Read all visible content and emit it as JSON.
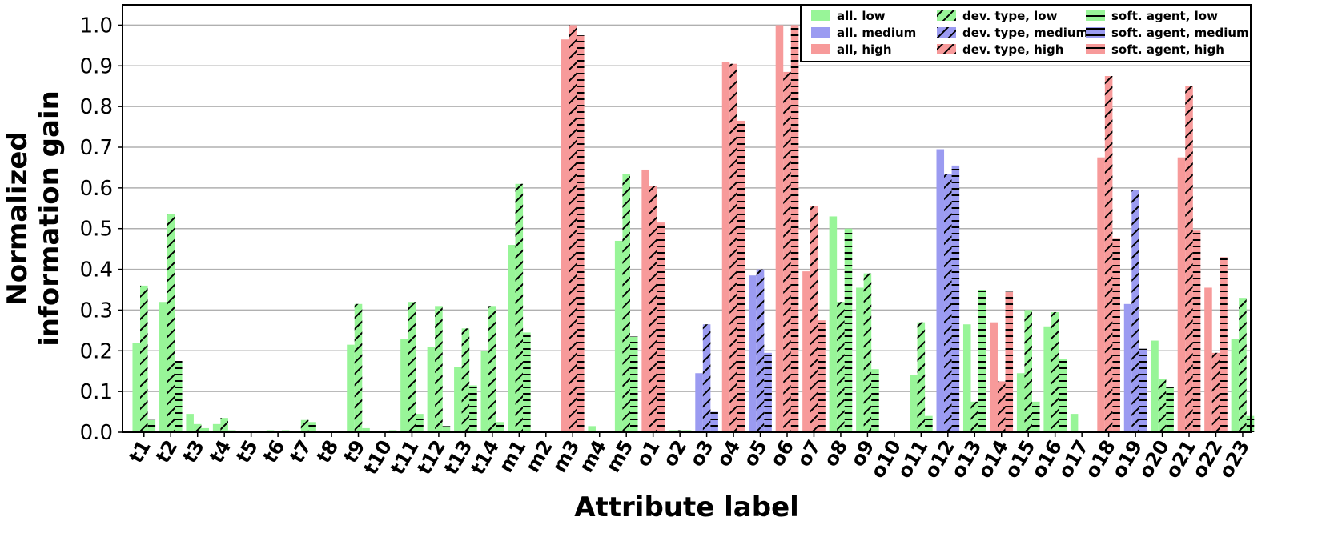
{
  "chart_data": {
    "type": "bar",
    "xlabel": "Attribute label",
    "ylabel_lines": [
      "Normalized",
      "information gain"
    ],
    "ylim": [
      0,
      1.05
    ],
    "yticks": [
      "0.0",
      "0.1",
      "0.2",
      "0.3",
      "0.4",
      "0.5",
      "0.6",
      "0.7",
      "0.8",
      "0.9",
      "1.0"
    ],
    "grid": "horizontal",
    "legend_position": "top-right",
    "categories": [
      "t1",
      "t2",
      "t3",
      "t4",
      "t5",
      "t6",
      "t7",
      "t8",
      "t9",
      "t10",
      "t11",
      "t12",
      "t13",
      "t14",
      "m1",
      "m2",
      "m3",
      "m4",
      "m5",
      "o1",
      "o2",
      "o3",
      "o4",
      "o5",
      "o6",
      "o7",
      "o8",
      "o9",
      "o10",
      "o11",
      "o12",
      "o13",
      "o14",
      "o15",
      "o16",
      "o17",
      "o18",
      "o19",
      "o20",
      "o21",
      "o22",
      "o23"
    ],
    "level_colors": {
      "low": "#98f598",
      "medium": "#9b9bf1",
      "high": "#f79a9a"
    },
    "group_hatches": {
      "all": "none",
      "dev. type": "diagonal",
      "soft. agent": "horizontal"
    },
    "levels": {
      "all": [
        "low",
        "low",
        "low",
        "low",
        "low",
        "low",
        "low",
        "low",
        "low",
        "low",
        "low",
        "low",
        "low",
        "low",
        "low",
        "low",
        "high",
        "low",
        "low",
        "high",
        "low",
        "medium",
        "high",
        "medium",
        "high",
        "high",
        "low",
        "low",
        "low",
        "low",
        "medium",
        "low",
        "high",
        "low",
        "low",
        "low",
        "high",
        "medium",
        "low",
        "high",
        "high",
        "low"
      ],
      "dev. type": [
        "low",
        "low",
        "low",
        "low",
        "low",
        "low",
        "low",
        "low",
        "low",
        "low",
        "low",
        "low",
        "low",
        "low",
        "low",
        "low",
        "high",
        "low",
        "low",
        "high",
        "low",
        "medium",
        "high",
        "medium",
        "high",
        "high",
        "low",
        "low",
        "low",
        "low",
        "medium",
        "low",
        "high",
        "low",
        "low",
        "low",
        "high",
        "medium",
        "low",
        "high",
        "high",
        "low"
      ],
      "soft. agent": [
        "low",
        "low",
        "low",
        "low",
        "low",
        "low",
        "low",
        "low",
        "low",
        "low",
        "low",
        "low",
        "low",
        "low",
        "low",
        "low",
        "high",
        "low",
        "low",
        "high",
        "low",
        "medium",
        "high",
        "medium",
        "high",
        "high",
        "low",
        "low",
        "low",
        "low",
        "medium",
        "low",
        "high",
        "low",
        "low",
        "low",
        "high",
        "medium",
        "low",
        "high",
        "high",
        "low"
      ]
    },
    "series": [
      {
        "name": "all",
        "values": [
          0.22,
          0.32,
          0.045,
          0.02,
          0,
          0.005,
          0,
          0,
          0.215,
          0,
          0.23,
          0.21,
          0.16,
          0.2,
          0.46,
          0,
          0.965,
          0.015,
          0.47,
          0.645,
          0.005,
          0.145,
          0.91,
          0.385,
          1.0,
          0.395,
          0.53,
          0.355,
          0,
          0.14,
          0.695,
          0.265,
          0.27,
          0.145,
          0.26,
          0.045,
          0.675,
          0.315,
          0.225,
          0.675,
          0.355,
          0.23
        ]
      },
      {
        "name": "dev. type",
        "values": [
          0.36,
          0.535,
          0.02,
          0.035,
          0,
          0,
          0.03,
          0,
          0.315,
          0,
          0.32,
          0.31,
          0.255,
          0.31,
          0.61,
          0,
          1.0,
          0,
          0.635,
          0.605,
          0.005,
          0.265,
          0.905,
          0.4,
          0.885,
          0.555,
          0.32,
          0.39,
          0,
          0.27,
          0.635,
          0.075,
          0.125,
          0.3,
          0.295,
          0,
          0.875,
          0.595,
          0.13,
          0.85,
          0.195,
          0.33
        ]
      },
      {
        "name": "soft. agent",
        "values": [
          0.03,
          0.175,
          0.01,
          0.005,
          0,
          0.005,
          0.025,
          0,
          0.01,
          0.005,
          0.045,
          0.015,
          0.115,
          0.025,
          0.245,
          0,
          0.975,
          0,
          0.235,
          0.515,
          0.005,
          0.05,
          0.765,
          0.195,
          1.0,
          0.275,
          0.5,
          0.155,
          0,
          0.04,
          0.655,
          0.35,
          0.345,
          0.075,
          0.18,
          0,
          0.475,
          0.205,
          0.11,
          0.495,
          0.43,
          0.04
        ]
      }
    ],
    "legend": [
      [
        "all. low",
        "dev. type, low",
        "soft. agent, low"
      ],
      [
        "all. medium",
        "dev. type, medium",
        "soft. agent, medium"
      ],
      [
        "all, high",
        "dev. type, high",
        "soft. agent, high"
      ]
    ]
  }
}
